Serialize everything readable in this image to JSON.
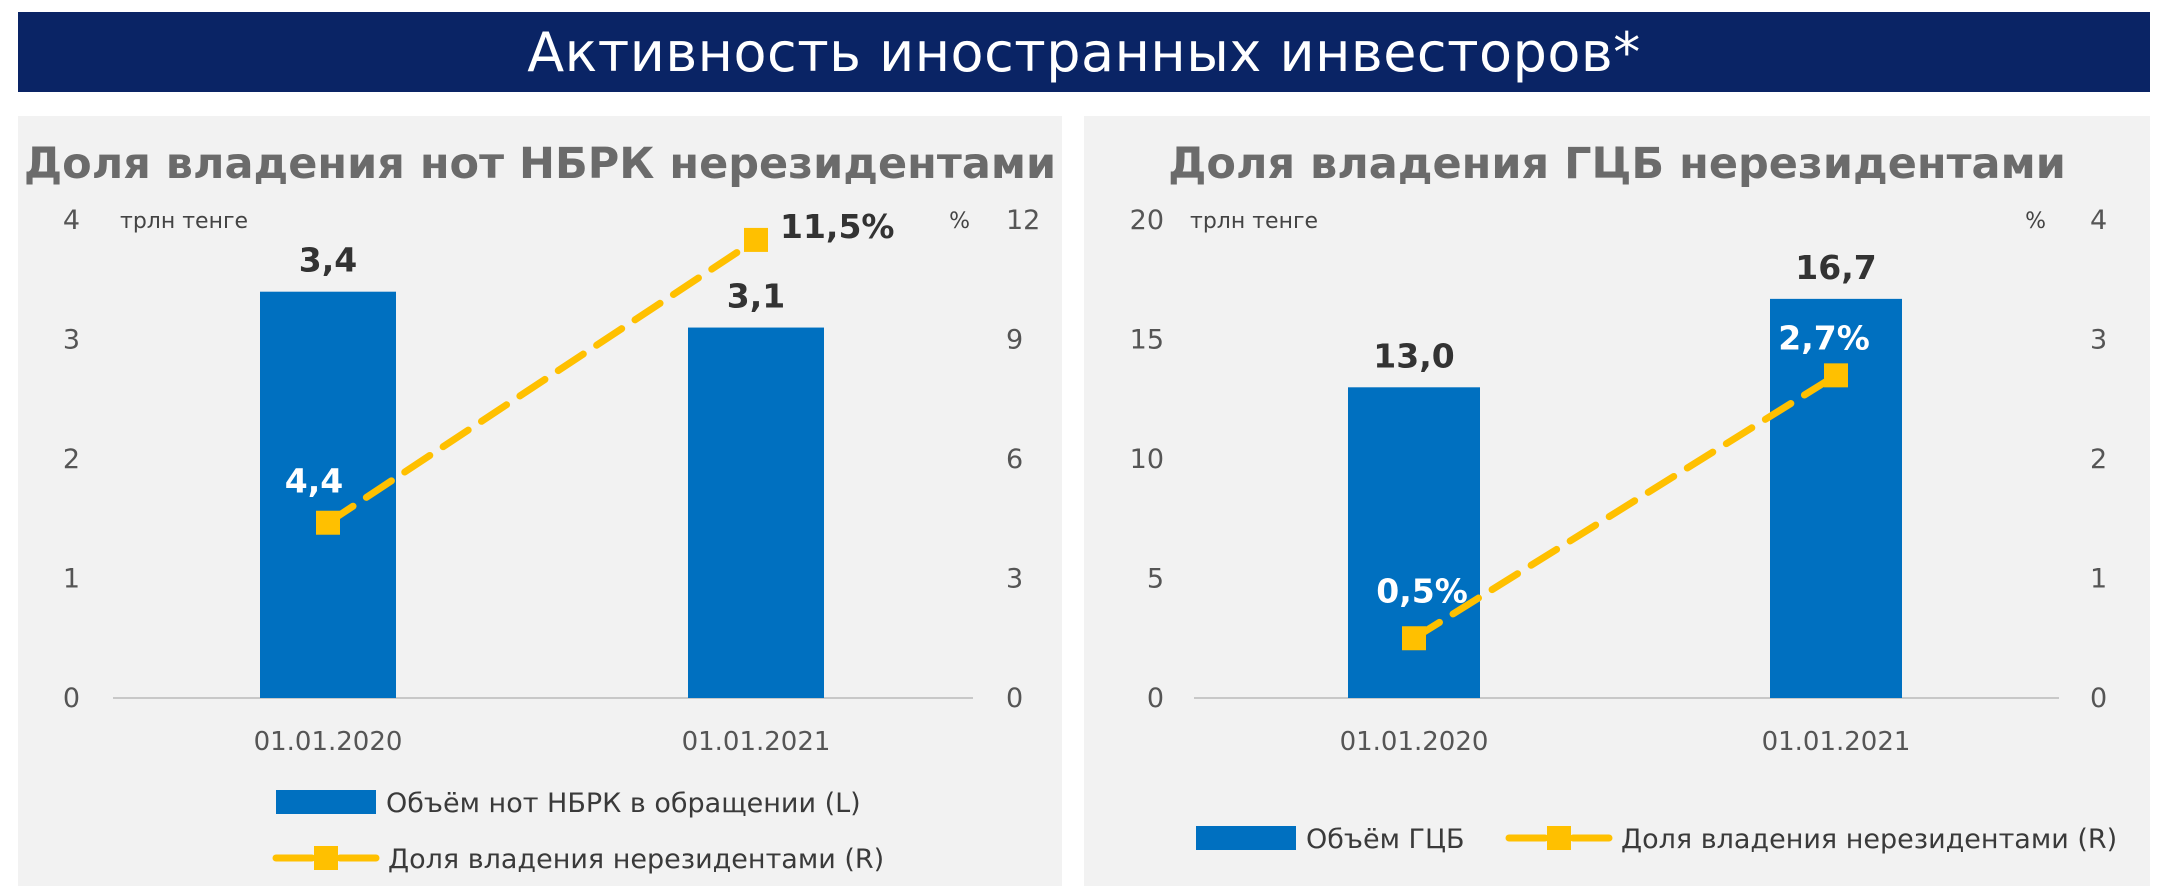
{
  "page_title": "Активность иностранных инвесторов*",
  "colors": {
    "banner": "#0a2465",
    "bar": "#0070c0",
    "line": "#ffc000",
    "panel": "#f2f2f2"
  },
  "chart_data": [
    {
      "type": "bar+line",
      "title": "Доля владения нот НБРК нерезидентами",
      "y_left_unit": "трлн тенге",
      "y_right_unit": "%",
      "y_left_ticks": [
        "0",
        "1",
        "2",
        "3",
        "4"
      ],
      "y_right_ticks": [
        "0",
        "3",
        "6",
        "9",
        "12"
      ],
      "ylim_left": [
        0,
        4
      ],
      "ylim_right": [
        0,
        12
      ],
      "categories": [
        "01.01.2020",
        "01.01.2021"
      ],
      "bars": {
        "name": "Объём нот НБРК в обращении (L)",
        "values": [
          3.4,
          3.1
        ],
        "labels": [
          "3,4",
          "3,1"
        ]
      },
      "line": {
        "name": "Доля владения нерезидентами (R)",
        "values": [
          4.4,
          11.5
        ],
        "labels": [
          "4,4",
          "11,5%"
        ]
      },
      "legend_placement": "bottom"
    },
    {
      "type": "bar+line",
      "title": "Доля владения ГЦБ нерезидентами",
      "y_left_unit": "трлн тенге",
      "y_right_unit": "%",
      "y_left_ticks": [
        "0",
        "5",
        "10",
        "15",
        "20"
      ],
      "y_right_ticks": [
        "0",
        "1",
        "2",
        "3",
        "4"
      ],
      "ylim_left": [
        0,
        20
      ],
      "ylim_right": [
        0,
        4
      ],
      "categories": [
        "01.01.2020",
        "01.01.2021"
      ],
      "bars": {
        "name": "Объём ГЦБ",
        "values": [
          13.0,
          16.7
        ],
        "labels": [
          "13,0",
          "16,7"
        ]
      },
      "line": {
        "name": "Доля владения нерезидентами (R)",
        "values": [
          0.5,
          2.7
        ],
        "labels": [
          "0,5%",
          "2,7%"
        ]
      },
      "legend_placement": "bottom"
    }
  ]
}
